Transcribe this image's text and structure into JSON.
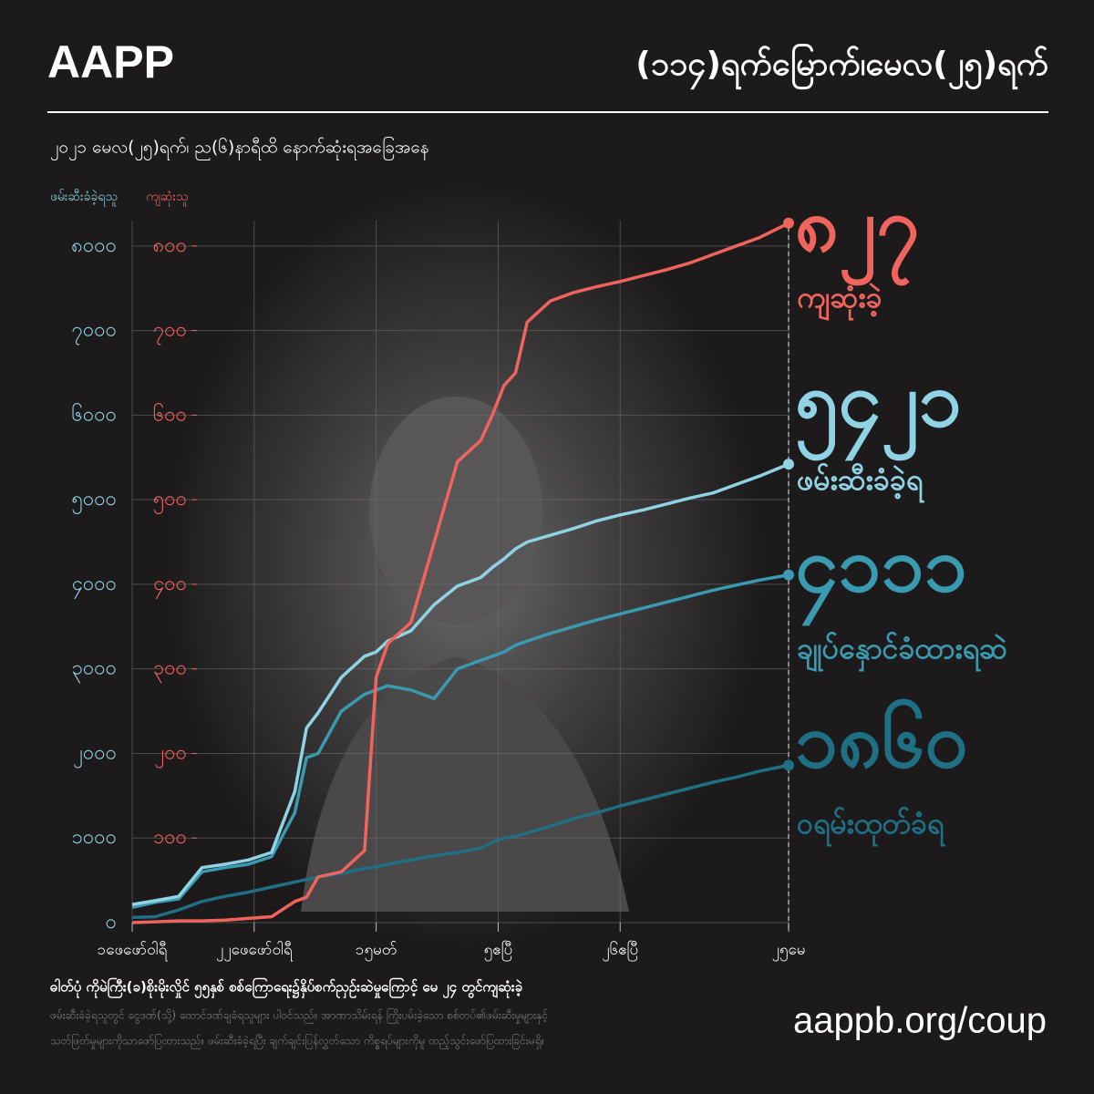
{
  "chart_data": {
    "type": "line",
    "logo": "AAPP",
    "title": "(၁၁၄)ရက်မြောက်၊မေလ(၂၅)ရက်",
    "subtitle": "၂၀၂၁  မေလ(၂၅)ရက်၊  ည(၆)နာရီထိ  နောက်ဆုံးရအခြေအနေ",
    "ylabel": "ဖမ်းဆီးခံခဲ့ရသူ",
    "y2label": "ကျဆုံးသူ",
    "x": [
      "02-01",
      "02-05",
      "02-09",
      "02-13",
      "02-17",
      "02-21",
      "02-25",
      "03-01",
      "03-03",
      "03-05",
      "03-09",
      "03-13",
      "03-15",
      "03-17",
      "03-21",
      "03-25",
      "03-29",
      "04-02",
      "04-04",
      "04-06",
      "04-08",
      "04-10",
      "04-14",
      "04-18",
      "04-22",
      "04-26",
      "04-30",
      "05-04",
      "05-08",
      "05-12",
      "05-16",
      "05-20",
      "05-25"
    ],
    "xlim": [
      "02-01",
      "05-25"
    ],
    "xticks": [
      {
        "value": "02-01",
        "label": "၁ဖေဖော်ဝါရီ"
      },
      {
        "value": "02-22",
        "label": "၂၂ဖေဖော်ဝါရီ"
      },
      {
        "value": "03-15",
        "label": "၁၅မတ်"
      },
      {
        "value": "04-05",
        "label": "၅ဧပြီ"
      },
      {
        "value": "04-26",
        "label": "၂၆ဧပြီ"
      },
      {
        "value": "05-25",
        "label": "၂၅မေ"
      }
    ],
    "ylim": [
      0,
      8300
    ],
    "yticks": [
      {
        "value": 0,
        "label": "၀"
      },
      {
        "value": 1000,
        "label": "၁၀၀၀"
      },
      {
        "value": 2000,
        "label": "၂၀၀၀"
      },
      {
        "value": 3000,
        "label": "၃၀၀၀"
      },
      {
        "value": 4000,
        "label": "၄၀၀၀"
      },
      {
        "value": 5000,
        "label": "၅၀၀၀"
      },
      {
        "value": 6000,
        "label": "၆၀၀၀"
      },
      {
        "value": 7000,
        "label": "၇၀၀၀"
      },
      {
        "value": 8000,
        "label": "၈၀၀၀"
      }
    ],
    "y2lim": [
      0,
      830
    ],
    "y2ticks": [
      {
        "value": 100,
        "label": "၁၀၀"
      },
      {
        "value": 200,
        "label": "၂၀၀"
      },
      {
        "value": 300,
        "label": "၃၀၀"
      },
      {
        "value": 400,
        "label": "၄၀၀"
      },
      {
        "value": 500,
        "label": "၅၀၀"
      },
      {
        "value": 600,
        "label": "၆၀၀"
      },
      {
        "value": 700,
        "label": "၇၀၀"
      },
      {
        "value": 800,
        "label": "၈၀၀"
      }
    ],
    "grid": true,
    "series": [
      {
        "name": "ကျဆုံးခဲ့",
        "color": "#f0645e",
        "axis": "y2",
        "values": [
          0,
          1,
          2,
          2,
          3,
          5,
          7,
          25,
          30,
          54,
          60,
          85,
          290,
          330,
          355,
          450,
          545,
          570,
          600,
          635,
          650,
          710,
          735,
          745,
          752,
          758,
          765,
          772,
          780,
          790,
          800,
          810,
          827
        ],
        "value_labels": [
          null,
          null,
          null,
          null,
          null,
          null,
          null,
          null,
          null,
          null,
          null,
          null,
          null,
          null,
          null,
          null,
          null,
          null,
          null,
          null,
          null,
          null,
          null,
          null,
          null,
          null,
          null,
          null,
          null,
          null,
          null,
          null,
          "၈၂၇"
        ]
      },
      {
        "name": "ဖမ်းဆီးခံခဲ့ရ",
        "color": "#8fd3e4",
        "values": [
          215,
          260,
          310,
          650,
          690,
          740,
          830,
          1550,
          2300,
          2480,
          2900,
          3150,
          3200,
          3330,
          3450,
          3760,
          3980,
          4080,
          4200,
          4300,
          4420,
          4500,
          4580,
          4660,
          4750,
          4820,
          4880,
          4950,
          5020,
          5080,
          5180,
          5280,
          5421
        ],
        "value_labels": [
          null,
          null,
          null,
          null,
          null,
          null,
          null,
          null,
          null,
          null,
          null,
          null,
          null,
          null,
          null,
          null,
          null,
          null,
          null,
          null,
          null,
          null,
          null,
          null,
          null,
          null,
          null,
          null,
          null,
          null,
          null,
          null,
          "၅၄၂၁"
        ]
      },
      {
        "name": "ချုပ်နှောင်ခံထားရဆဲ",
        "color": "#3a9bb0",
        "values": [
          180,
          240,
          280,
          600,
          650,
          690,
          780,
          1300,
          1950,
          2000,
          2500,
          2700,
          2750,
          2800,
          2750,
          2650,
          3000,
          3100,
          3150,
          3200,
          3280,
          3330,
          3420,
          3500,
          3580,
          3650,
          3720,
          3790,
          3860,
          3930,
          3990,
          4050,
          4111
        ],
        "value_labels": [
          null,
          null,
          null,
          null,
          null,
          null,
          null,
          null,
          null,
          null,
          null,
          null,
          null,
          null,
          null,
          null,
          null,
          null,
          null,
          null,
          null,
          null,
          null,
          null,
          null,
          null,
          null,
          null,
          null,
          null,
          null,
          null,
          "၄၁၁၁"
        ]
      },
      {
        "name": "ဝရမ်းထုတ်ခံရ",
        "color": "#1f6f85",
        "values": [
          60,
          70,
          150,
          250,
          310,
          360,
          420,
          480,
          510,
          540,
          580,
          640,
          660,
          690,
          740,
          790,
          830,
          880,
          950,
          1000,
          1020,
          1060,
          1140,
          1230,
          1300,
          1380,
          1450,
          1520,
          1590,
          1660,
          1720,
          1790,
          1860
        ],
        "value_labels": [
          null,
          null,
          null,
          null,
          null,
          null,
          null,
          null,
          null,
          null,
          null,
          null,
          null,
          null,
          null,
          null,
          null,
          null,
          null,
          null,
          null,
          null,
          null,
          null,
          null,
          null,
          null,
          null,
          null,
          null,
          null,
          null,
          "၁၈၆၀"
        ]
      }
    ],
    "caption": "ဓါတ်ပုံ  ကိုမဲကြီး(ခ)စိုးမိုးလှိုင် ၅၅နှစ် စစ်ကြောရေး၌နှိပ်စက်ညှဉ်းဆဲမှုကြောင့် မေ ၂၄ တွင်ကျဆုံးခဲ့",
    "notes": [
      "ဖမ်းဆီးခံခဲ့ရသူတွင် ငွေဒဏ်(သို့) ထောင်ဒဏ်ချခံရသူများ ပါဝင်သည်။ အာဏာသိမ်းရန် ကြိုးပမ်းခဲ့သော စစ်တပ်၏ဖမ်းဆီးမှုများနှင့်",
      "သတ်ဖြတ်မှုများကိုသာဖော်ပြထားသည်။ ဖမ်းဆီးခံခဲ့ရပြီး ချက်ချင်းပြန်လွှတ်သော ကိစ္စရပ်များကိုမူ ထည့်သွင်းဖော်ပြထားခြင်းမရှိ။"
    ],
    "url": "aappb.org/coup"
  }
}
